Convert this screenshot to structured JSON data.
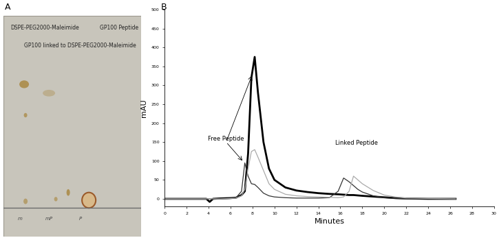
{
  "chart_data": [
    {
      "type": "tlc_plate",
      "panel_label": "A",
      "lane_labels": [
        "DSPE-PEG2000-Maleimide",
        "GP100 linked to DSPE-PEG2000-Maleimide",
        "GP100 Peptide"
      ],
      "lane_marks": [
        "m",
        "mP",
        "P"
      ]
    },
    {
      "type": "line",
      "panel_label": "B",
      "x_label": "Minutes",
      "y_label": "mAU",
      "x": [
        0,
        2,
        3.8,
        4.1,
        4.4,
        5,
        6,
        6.5,
        7,
        7.3,
        7.6,
        7.9,
        8.2,
        8.5,
        9,
        9.5,
        10,
        11,
        12,
        13,
        14,
        15,
        15.8,
        16.3,
        16.8,
        17.2,
        17.6,
        18,
        19,
        20,
        21,
        22,
        24,
        26.5
      ],
      "series": [
        {
          "color": "#000000",
          "values": [
            0,
            0,
            0,
            -8,
            0,
            1,
            2,
            3,
            10,
            20,
            120,
            320,
            375,
            280,
            150,
            80,
            50,
            30,
            22,
            18,
            15,
            13,
            12,
            11,
            10,
            10,
            9,
            8,
            6,
            4,
            2,
            1,
            0,
            0
          ]
        },
        {
          "color": "#333333",
          "values": [
            0,
            0,
            0,
            0,
            0,
            0,
            1,
            3,
            20,
            95,
            60,
            40,
            38,
            30,
            15,
            8,
            5,
            3,
            2,
            2,
            2,
            3,
            20,
            55,
            45,
            35,
            25,
            18,
            8,
            3,
            1,
            0,
            0,
            0
          ]
        },
        {
          "color": "#aaaaaa",
          "values": [
            0,
            0,
            0,
            0,
            0,
            0,
            1,
            2,
            8,
            25,
            80,
            125,
            130,
            110,
            75,
            40,
            25,
            12,
            8,
            6,
            5,
            4,
            3,
            5,
            20,
            60,
            50,
            40,
            22,
            10,
            5,
            2,
            1,
            0
          ]
        }
      ],
      "xlim": [
        0,
        30
      ],
      "xticks": [
        0,
        2,
        4,
        6,
        8,
        10,
        12,
        14,
        16,
        18,
        20,
        22,
        24,
        26,
        28,
        30
      ],
      "ylim": [
        -20,
        500
      ],
      "yticks": [
        0,
        50,
        100,
        150,
        200,
        250,
        300,
        350,
        400,
        450,
        500
      ],
      "annotations": [
        {
          "text": "Free Peptide",
          "x": 5.6,
          "y": 150,
          "points": [
            [
              7.2,
              97
            ],
            [
              8.0,
              330
            ]
          ]
        },
        {
          "text": "Linked Peptide",
          "x": 17.5,
          "y": 140,
          "points": []
        }
      ]
    }
  ]
}
